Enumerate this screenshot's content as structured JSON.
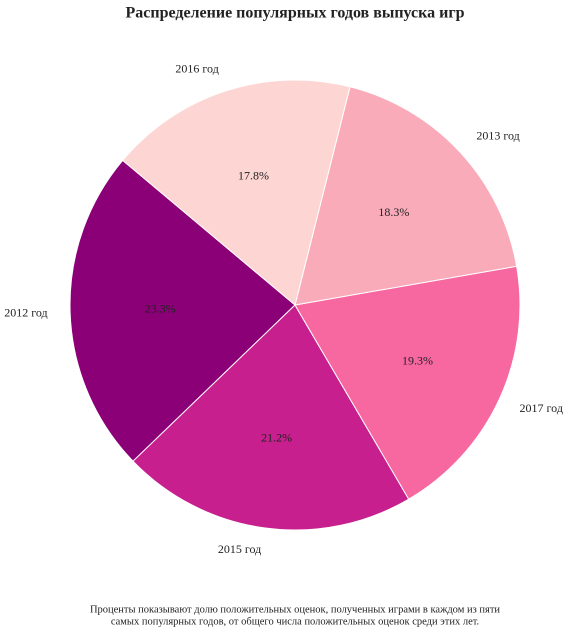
{
  "chart_data": {
    "type": "pie",
    "title": "Распределение популярных годов выпуска игр",
    "categories": [
      "2012 год",
      "2015 год",
      "2017 год",
      "2013 год",
      "2016 год"
    ],
    "values": [
      23.3,
      21.2,
      19.3,
      18.3,
      17.8
    ],
    "value_labels": [
      "23.3%",
      "21.2%",
      "19.3%",
      "18.3%",
      "17.8%"
    ],
    "colors": [
      "#8b0077",
      "#c71f8d",
      "#f768a1",
      "#faabb9",
      "#fdd5d2"
    ],
    "caption": [
      "Проценты показывают долю положительных оценок, полученных играми в каждом из пяти",
      "самых популярных годов, от общего числа положительных оценок среди этих лет."
    ]
  }
}
